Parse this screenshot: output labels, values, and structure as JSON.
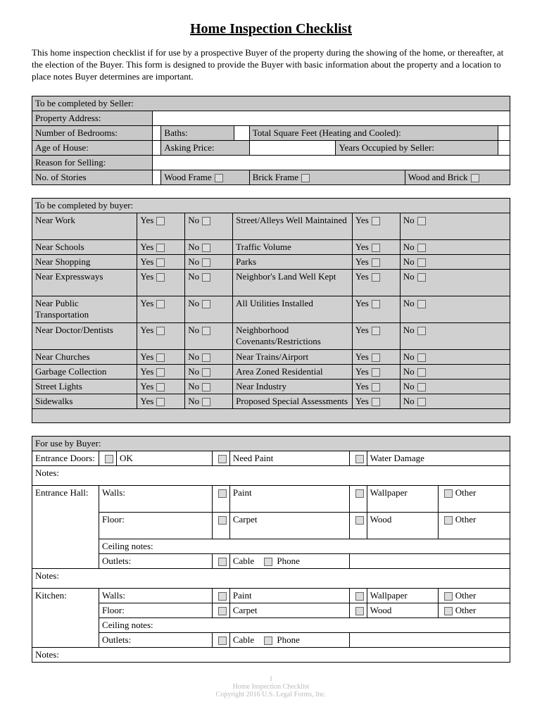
{
  "title": "Home Inspection Checklist",
  "intro": "This home inspection checklist if for use by a prospective Buyer of the property during the showing of the home, or thereafter, at the election of the Buyer.  This form is designed to provide the Buyer with basic information about the property and a location to place notes Buyer determines are important.",
  "seller": {
    "header": "To be completed by Seller:",
    "propertyAddress": "Property Address:",
    "numBedrooms": "Number of Bedrooms:",
    "baths": "Baths:",
    "totalSqFt": "Total Square Feet (Heating and Cooled):",
    "ageOfHouse": "Age of House:",
    "askingPrice": "Asking Price:",
    "yearsOccupied": "Years Occupied by Seller:",
    "reasonSelling": "Reason for Selling:",
    "numStories": "No. of Stories",
    "woodFrame": "Wood Frame",
    "brickFrame": "Brick Frame",
    "woodBrick": "Wood and Brick"
  },
  "buyer": {
    "header": "To be completed by buyer:",
    "yes": "Yes",
    "no": "No",
    "leftItems": [
      "Near Work",
      "Near Schools",
      "Near Shopping",
      "Near Expressways",
      "Near Public Transportation",
      "Near Doctor/Dentists",
      "Near Churches",
      "Garbage Collection",
      "Street Lights",
      "Sidewalks"
    ],
    "rightItems": [
      "Street/Alleys Well Maintained",
      "Traffic Volume",
      "Parks",
      "Neighbor's Land Well Kept",
      "All Utilities Installed",
      "Neighborhood Covenants/Restrictions",
      "Near Trains/Airport",
      "Area Zoned Residential",
      "Near Industry",
      "Proposed Special Assessments"
    ]
  },
  "cond": {
    "header": "For use by Buyer:",
    "entranceDoors": "Entrance Doors:",
    "ok": "OK",
    "needPaint": "Need Paint",
    "waterDamage": "Water Damage",
    "notes": "Notes:",
    "entranceHall": "Entrance Hall:",
    "kitchen": "Kitchen:",
    "walls": "Walls:",
    "floor": "Floor:",
    "ceilingNotes": "Ceiling notes:",
    "outlets": "Outlets:",
    "paint": "Paint",
    "wallpaper": "Wallpaper",
    "other": "Other",
    "carpet": "Carpet",
    "wood": "Wood",
    "cable": "Cable",
    "phone": "Phone"
  },
  "footer": {
    "pageNum": "1",
    "line1": "Home Inspection Checklist",
    "line2": "Copyright 2016 U.S. Legal Forms, Inc."
  }
}
